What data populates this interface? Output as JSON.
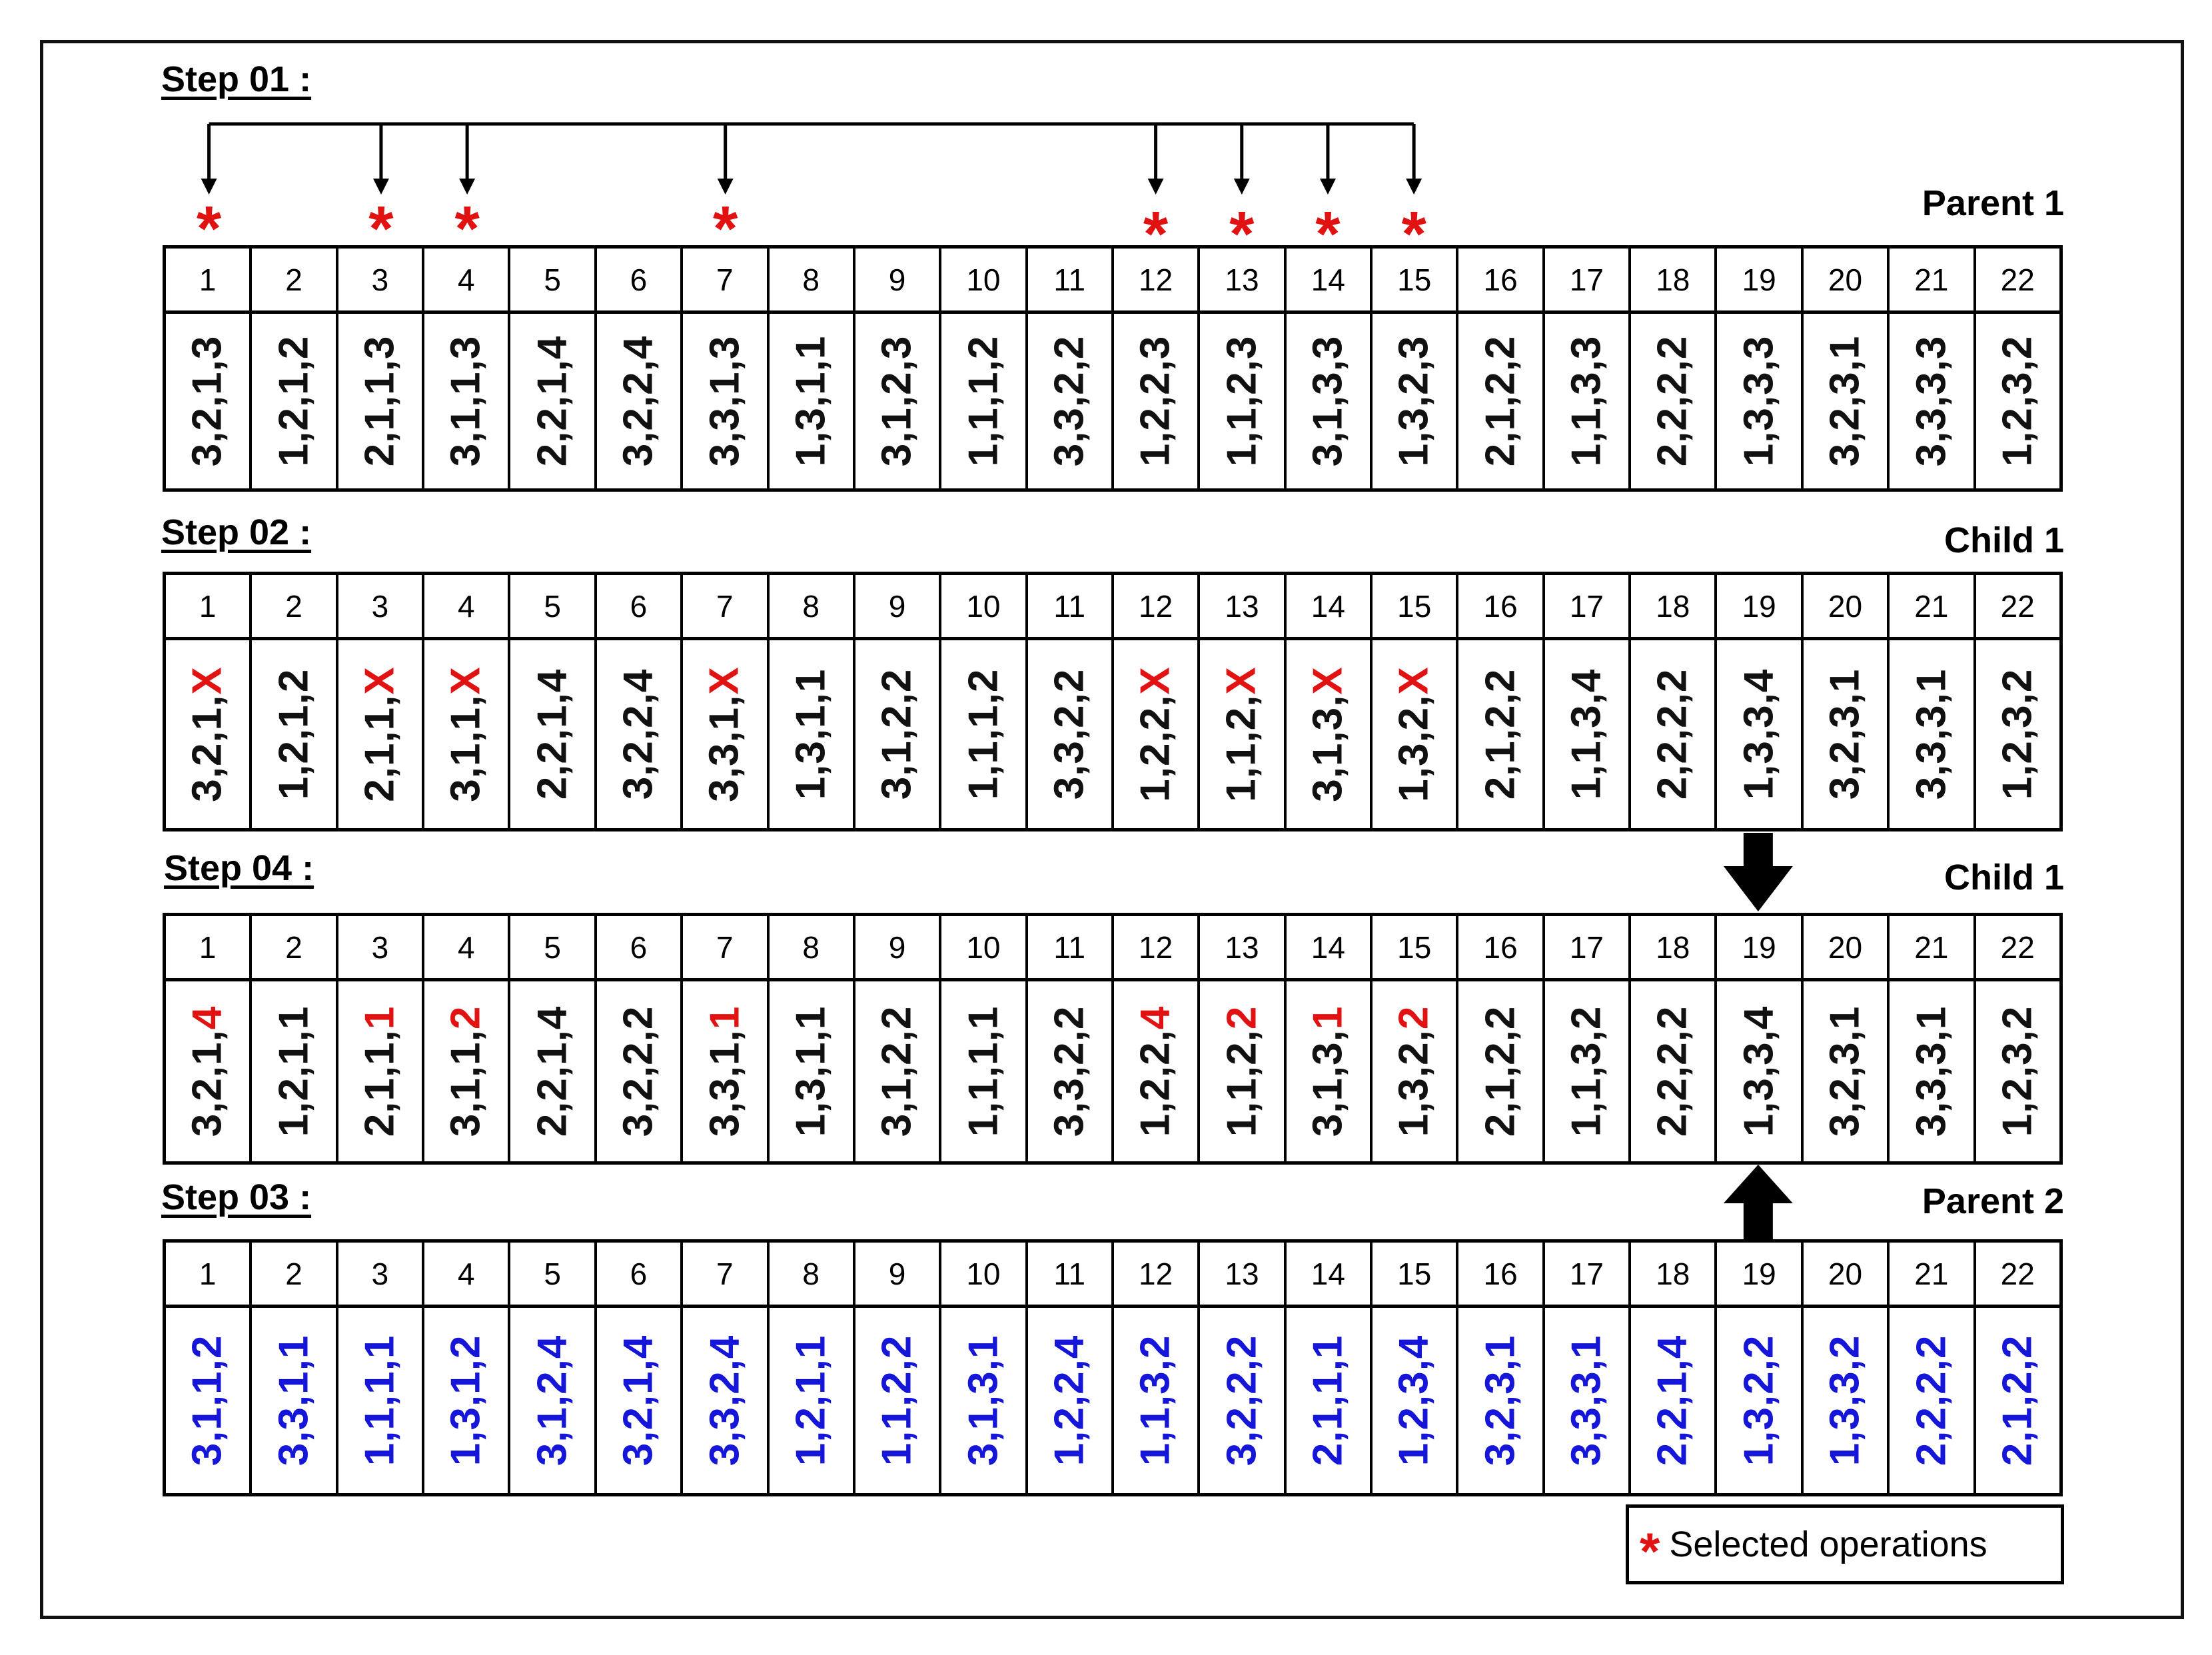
{
  "legend": {
    "text": "Selected operations",
    "icon": "red-asterisk"
  },
  "colors": {
    "parent2": "#1616d8",
    "highlight": "#e01212",
    "text": "#111111"
  },
  "sections": [
    {
      "id": "step01",
      "step": "Step 01 :",
      "label": "Parent 1",
      "indices": [
        "1",
        "2",
        "3",
        "4",
        "5",
        "6",
        "7",
        "8",
        "9",
        "10",
        "11",
        "12",
        "13",
        "14",
        "15",
        "16",
        "17",
        "18",
        "19",
        "20",
        "21",
        "22"
      ],
      "cells": [
        {
          "v": "3,2,1,3"
        },
        {
          "v": "1,2,1,2"
        },
        {
          "v": "2,1,1,3"
        },
        {
          "v": "3,1,1,3"
        },
        {
          "v": "2,2,1,4"
        },
        {
          "v": "3,2,2,4"
        },
        {
          "v": "3,3,1,3"
        },
        {
          "v": "1,3,1,1"
        },
        {
          "v": "3,1,2,3"
        },
        {
          "v": "1,1,1,2"
        },
        {
          "v": "3,3,2,2"
        },
        {
          "v": "1,2,2,3"
        },
        {
          "v": "1,1,2,3"
        },
        {
          "v": "3,1,3,3"
        },
        {
          "v": "1,3,2,3"
        },
        {
          "v": "2,1,2,2"
        },
        {
          "v": "1,1,3,3"
        },
        {
          "v": "2,2,2,2"
        },
        {
          "v": "1,3,3,3"
        },
        {
          "v": "3,2,3,1"
        },
        {
          "v": "3,3,3,3"
        },
        {
          "v": "1,2,3,2"
        }
      ],
      "selected": [
        1,
        3,
        4,
        7,
        12,
        13,
        14,
        15
      ]
    },
    {
      "id": "step02",
      "step": "Step 02 :",
      "label": "Child 1",
      "indices": [
        "1",
        "2",
        "3",
        "4",
        "5",
        "6",
        "7",
        "8",
        "9",
        "10",
        "11",
        "12",
        "13",
        "14",
        "15",
        "16",
        "17",
        "18",
        "19",
        "20",
        "21",
        "22"
      ],
      "cells": [
        {
          "v": "3,2,1,",
          "r": "X"
        },
        {
          "v": "1,2,1,2"
        },
        {
          "v": "2,1,1,",
          "r": "X"
        },
        {
          "v": "3,1,1,",
          "r": "X"
        },
        {
          "v": "2,2,1,4"
        },
        {
          "v": "3,2,2,4"
        },
        {
          "v": "3,3,1,",
          "r": "X"
        },
        {
          "v": "1,3,1,1"
        },
        {
          "v": "3,1,2,2"
        },
        {
          "v": "1,1,1,2"
        },
        {
          "v": "3,3,2,2"
        },
        {
          "v": "1,2,2,",
          "r": "X"
        },
        {
          "v": "1,1,2,",
          "r": "X"
        },
        {
          "v": "3,1,3,",
          "r": "X"
        },
        {
          "v": "1,3,2,",
          "r": "X"
        },
        {
          "v": "2,1,2,2"
        },
        {
          "v": "1,1,3,4"
        },
        {
          "v": "2,2,2,2"
        },
        {
          "v": "1,3,3,4"
        },
        {
          "v": "3,2,3,1"
        },
        {
          "v": "3,3,3,1"
        },
        {
          "v": "1,2,3,2"
        }
      ]
    },
    {
      "id": "step04",
      "step": "Step 04 :",
      "label": "Child 1",
      "indices": [
        "1",
        "2",
        "3",
        "4",
        "5",
        "6",
        "7",
        "8",
        "9",
        "10",
        "11",
        "12",
        "13",
        "14",
        "15",
        "16",
        "17",
        "18",
        "19",
        "20",
        "21",
        "22"
      ],
      "cells": [
        {
          "v": "3,2,1,",
          "r": "4"
        },
        {
          "v": "1,2,1,1"
        },
        {
          "v": "2,1,1,",
          "r": "1"
        },
        {
          "v": "3,1,1,",
          "r": "2"
        },
        {
          "v": "2,2,1,4"
        },
        {
          "v": "3,2,2,2"
        },
        {
          "v": "3,3,1,",
          "r": "1"
        },
        {
          "v": "1,3,1,1"
        },
        {
          "v": "3,1,2,2"
        },
        {
          "v": "1,1,1,1"
        },
        {
          "v": "3,3,2,2"
        },
        {
          "v": "1,2,2,",
          "r": "4"
        },
        {
          "v": "1,1,2,",
          "r": "2"
        },
        {
          "v": "3,1,3,",
          "r": "1"
        },
        {
          "v": "1,3,2,",
          "r": "2"
        },
        {
          "v": "2,1,2,2"
        },
        {
          "v": "1,1,3,2"
        },
        {
          "v": "2,2,2,2"
        },
        {
          "v": "1,3,3,4"
        },
        {
          "v": "3,2,3,1"
        },
        {
          "v": "3,3,3,1"
        },
        {
          "v": "1,2,3,2"
        }
      ]
    },
    {
      "id": "step03",
      "step": "Step 03 :",
      "label": "Parent 2",
      "color": "blue",
      "indices": [
        "1",
        "2",
        "3",
        "4",
        "5",
        "6",
        "7",
        "8",
        "9",
        "10",
        "11",
        "12",
        "13",
        "14",
        "15",
        "16",
        "17",
        "18",
        "19",
        "20",
        "21",
        "22"
      ],
      "cells": [
        {
          "v": "3,1,1,2"
        },
        {
          "v": "3,3,1,1"
        },
        {
          "v": "1,1,1,1"
        },
        {
          "v": "1,3,1,2"
        },
        {
          "v": "3,1,2,4"
        },
        {
          "v": "3,2,1,4"
        },
        {
          "v": "3,3,2,4"
        },
        {
          "v": "1,2,1,1"
        },
        {
          "v": "1,1,2,2"
        },
        {
          "v": "3,1,3,1"
        },
        {
          "v": "1,2,2,4"
        },
        {
          "v": "1,1,3,2"
        },
        {
          "v": "3,2,2,2"
        },
        {
          "v": "2,1,1,1"
        },
        {
          "v": "1,2,3,4"
        },
        {
          "v": "3,2,3,1"
        },
        {
          "v": "3,3,3,1"
        },
        {
          "v": "2,2,1,4"
        },
        {
          "v": "1,3,2,2"
        },
        {
          "v": "1,3,3,2"
        },
        {
          "v": "2,2,2,2"
        },
        {
          "v": "2,1,2,2"
        }
      ]
    }
  ],
  "transfer_index": "19"
}
